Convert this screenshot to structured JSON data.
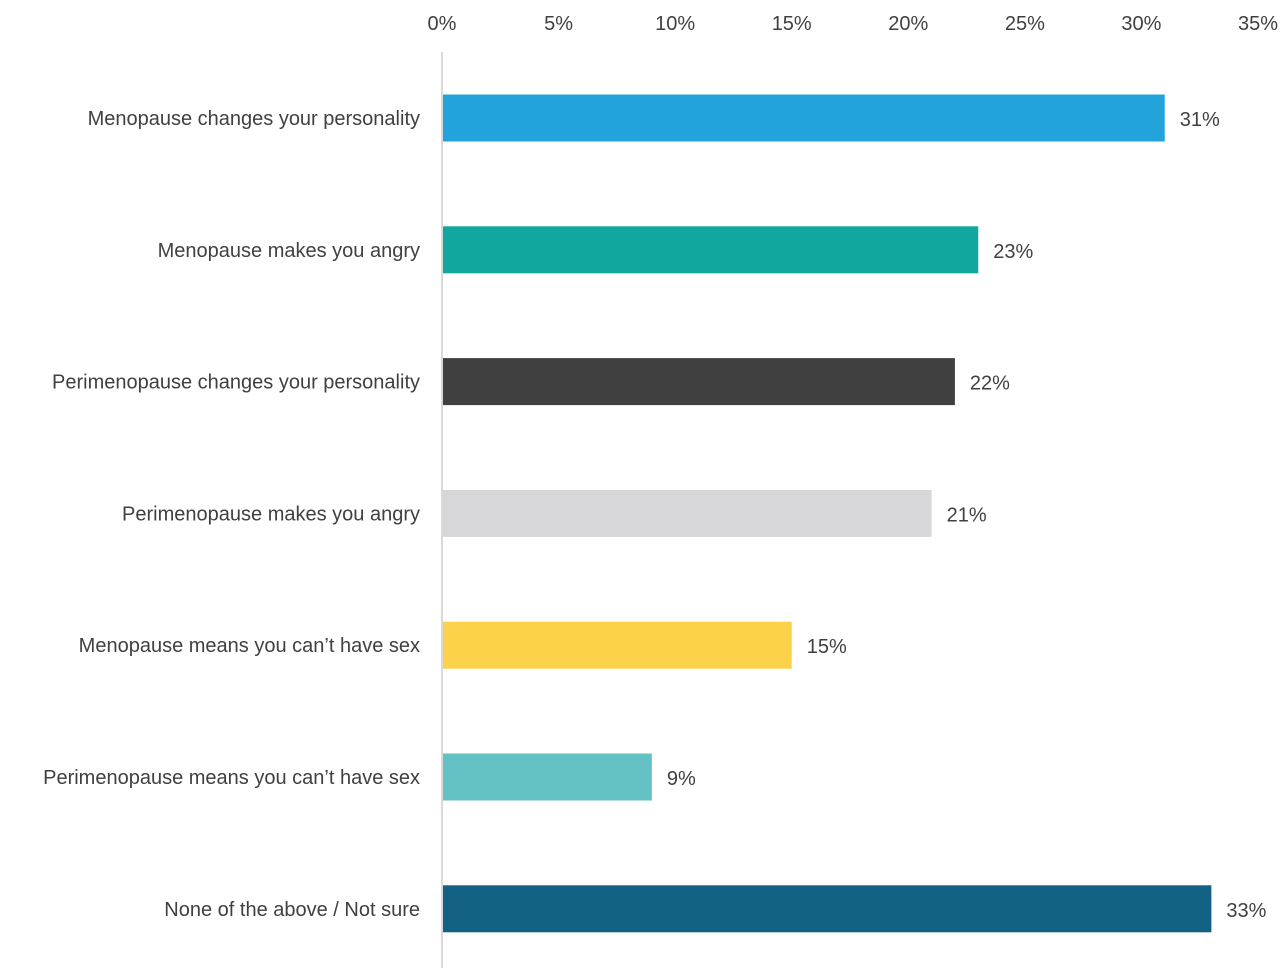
{
  "chart_data": {
    "type": "bar",
    "orientation": "horizontal",
    "categories": [
      "Menopause changes your personality",
      "Menopause makes you angry",
      "Perimenopause changes your personality",
      "Perimenopause makes you angry",
      "Menopause means you can’t have sex",
      "Perimenopause means you can’t have sex",
      "None of the above / Not sure"
    ],
    "values": [
      31,
      23,
      22,
      21,
      15,
      9,
      33
    ],
    "value_labels": [
      "31%",
      "23%",
      "22%",
      "21%",
      "15%",
      "9%",
      "33%"
    ],
    "bar_colors": [
      "#22a3dc",
      "#11a79e",
      "#404040",
      "#d7d7d9",
      "#fcd24a",
      "#63c1c3",
      "#136283"
    ],
    "xlim": [
      0,
      35
    ],
    "x_ticks": [
      0,
      5,
      10,
      15,
      20,
      25,
      30,
      35
    ],
    "x_tick_labels": [
      "0%",
      "5%",
      "10%",
      "15%",
      "20%",
      "25%",
      "30%",
      "35%"
    ],
    "x_axis_position": "top",
    "grid": false,
    "legend": "none",
    "title": "",
    "xlabel": "",
    "ylabel": ""
  }
}
